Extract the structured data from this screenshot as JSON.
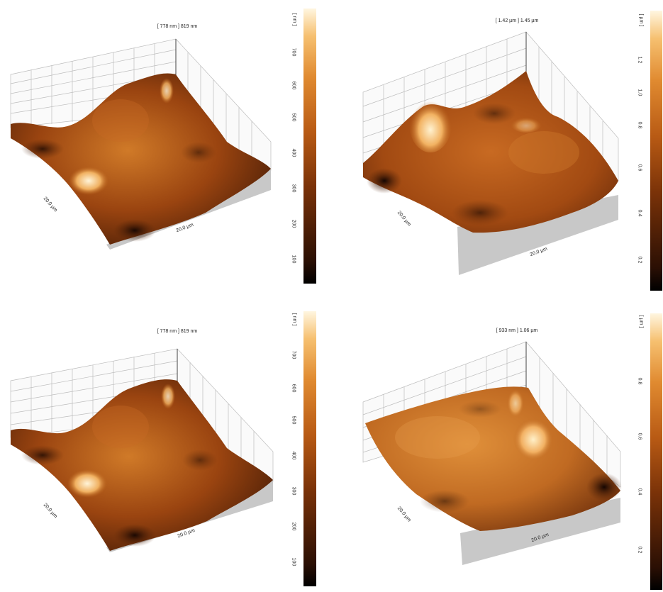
{
  "panels": [
    {
      "title": "[ 778 nm ] 819 nm",
      "x_label": "20.0 µm",
      "y_label": "20.0 µm",
      "colorbar": {
        "unit": "[ nm ]",
        "ticks": [
          "100",
          "200",
          "300",
          "400",
          "500",
          "600",
          "700"
        ]
      }
    },
    {
      "title": "[ 1.42 µm ] 1.45 µm",
      "x_label": "20.0 µm",
      "y_label": "20.0 µm",
      "colorbar": {
        "unit": "[ µm ]",
        "ticks": [
          "0.2",
          "0.4",
          "0.6",
          "0.8",
          "1.0",
          "1.2"
        ]
      }
    },
    {
      "title": "[ 778 nm ] 819 nm",
      "x_label": "20.0 µm",
      "y_label": "20.0 µm",
      "colorbar": {
        "unit": "[ nm ]",
        "ticks": [
          "100",
          "200",
          "300",
          "400",
          "500",
          "600",
          "700"
        ]
      }
    },
    {
      "title": "[ 933 nm ] 1.06 µm",
      "x_label": "20.0 µm",
      "y_label": "20.0 µm",
      "colorbar": {
        "unit": "[ µm ]",
        "ticks": [
          "0.2",
          "0.4",
          "0.6",
          "0.8"
        ]
      }
    }
  ],
  "colors": {
    "dark": "#2a0f04",
    "mid": "#a84a10",
    "light": "#f0a040",
    "peak": "#fff0c8",
    "base_shadow": "#c8c8c8",
    "grid": "#bdbdbd"
  }
}
